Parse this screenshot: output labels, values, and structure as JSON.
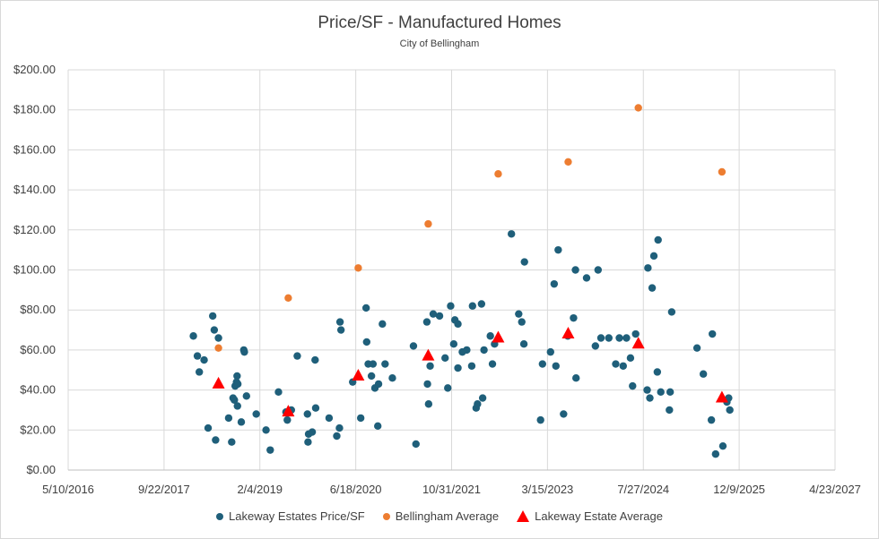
{
  "chart_data": {
    "type": "scatter",
    "title": "Price/SF - Manufactured Homes",
    "subtitle": "City of Bellingham",
    "x_tick_labels": [
      "5/10/2016",
      "9/22/2017",
      "2/4/2019",
      "6/18/2020",
      "10/31/2021",
      "3/15/2023",
      "7/27/2024",
      "12/9/2025",
      "4/23/2027"
    ],
    "y_tick_labels": [
      "$0.00",
      "$20.00",
      "$40.00",
      "$60.00",
      "$80.00",
      "$100.00",
      "$120.00",
      "$140.00",
      "$160.00",
      "$180.00",
      "$200.00"
    ],
    "xlim": [
      "5/10/2016",
      "4/23/2027"
    ],
    "ylim": [
      0,
      200
    ],
    "grid": true,
    "legend_position": "bottom",
    "series": [
      {
        "name": "Lakeway Estates Price/SF",
        "color": "#1f5f7a",
        "marker": "circle",
        "points": [
          [
            "2/22/2018",
            67
          ],
          [
            "3/15/2018",
            57
          ],
          [
            "3/25/2018",
            49
          ],
          [
            "4/19/2018",
            55
          ],
          [
            "5/10/2018",
            21
          ],
          [
            "6/3/2018",
            77
          ],
          [
            "6/11/2018",
            70
          ],
          [
            "6/18/2018",
            15
          ],
          [
            "7/3/2018",
            66
          ],
          [
            "8/25/2018",
            26
          ],
          [
            "9/10/2018",
            14
          ],
          [
            "9/17/2018",
            36
          ],
          [
            "9/24/2018",
            35
          ],
          [
            "9/28/2018",
            42
          ],
          [
            "10/5/2018",
            44
          ],
          [
            "10/8/2018",
            47
          ],
          [
            "10/10/2018",
            32
          ],
          [
            "10/12/2018",
            43
          ],
          [
            "10/30/2018",
            24
          ],
          [
            "11/12/2018",
            60
          ],
          [
            "11/15/2018",
            59
          ],
          [
            "11/26/2018",
            37
          ],
          [
            "1/16/2019",
            28
          ],
          [
            "3/8/2019",
            20
          ],
          [
            "3/30/2019",
            10
          ],
          [
            "5/12/2019",
            39
          ],
          [
            "6/20/2019",
            29
          ],
          [
            "6/27/2019",
            25
          ],
          [
            "7/18/2019",
            30
          ],
          [
            "8/18/2019",
            57
          ],
          [
            "10/10/2019",
            28
          ],
          [
            "10/13/2019",
            14
          ],
          [
            "10/16/2019",
            18
          ],
          [
            "11/4/2019",
            19
          ],
          [
            "11/19/2019",
            55
          ],
          [
            "11/22/2019",
            31
          ],
          [
            "1/31/2020",
            26
          ],
          [
            "3/11/2020",
            17
          ],
          [
            "3/25/2020",
            21
          ],
          [
            "3/28/2020",
            74
          ],
          [
            "4/2/2020",
            70
          ],
          [
            "6/2/2020",
            44
          ],
          [
            "7/14/2020",
            26
          ],
          [
            "8/11/2020",
            81
          ],
          [
            "8/14/2020",
            64
          ],
          [
            "8/22/2020",
            53
          ],
          [
            "9/8/2020",
            47
          ],
          [
            "9/16/2020",
            53
          ],
          [
            "9/26/2020",
            41
          ],
          [
            "10/11/2020",
            22
          ],
          [
            "10/15/2020",
            43
          ],
          [
            "11/4/2020",
            73
          ],
          [
            "11/18/2020",
            53
          ],
          [
            "12/26/2020",
            46
          ],
          [
            "4/15/2021",
            62
          ],
          [
            "4/28/2021",
            13
          ],
          [
            "6/24/2021",
            74
          ],
          [
            "6/27/2021",
            43
          ],
          [
            "7/3/2021",
            33
          ],
          [
            "7/11/2021",
            52
          ],
          [
            "7/27/2021",
            78
          ],
          [
            "8/29/2021",
            77
          ],
          [
            "9/27/2021",
            56
          ],
          [
            "10/11/2021",
            41
          ],
          [
            "10/26/2021",
            82
          ],
          [
            "11/11/2021",
            63
          ],
          [
            "11/17/2021",
            75
          ],
          [
            "12/3/2021",
            73
          ],
          [
            "12/3/2021",
            51
          ],
          [
            "12/26/2021",
            59
          ],
          [
            "1/18/2022",
            60
          ],
          [
            "2/13/2022",
            52
          ],
          [
            "2/17/2022",
            82
          ],
          [
            "3/8/2022",
            31
          ],
          [
            "3/15/2022",
            33
          ],
          [
            "4/5/2022",
            83
          ],
          [
            "4/11/2022",
            36
          ],
          [
            "4/18/2022",
            60
          ],
          [
            "5/21/2022",
            67
          ],
          [
            "6/1/2022",
            53
          ],
          [
            "6/12/2022",
            63
          ],
          [
            "9/8/2022",
            118
          ],
          [
            "10/16/2022",
            78
          ],
          [
            "11/1/2022",
            74
          ],
          [
            "11/12/2022",
            63
          ],
          [
            "11/15/2022",
            104
          ],
          [
            "2/7/2023",
            25
          ],
          [
            "2/17/2023",
            53
          ],
          [
            "3/31/2023",
            59
          ],
          [
            "4/19/2023",
            93
          ],
          [
            "4/28/2023",
            52
          ],
          [
            "5/10/2023",
            110
          ],
          [
            "6/7/2023",
            28
          ],
          [
            "6/29/2023",
            67
          ],
          [
            "7/29/2023",
            76
          ],
          [
            "8/8/2023",
            100
          ],
          [
            "8/11/2023",
            46
          ],
          [
            "10/5/2023",
            96
          ],
          [
            "11/20/2023",
            62
          ],
          [
            "12/4/2023",
            100
          ],
          [
            "12/19/2023",
            66
          ],
          [
            "1/29/2024",
            66
          ],
          [
            "3/5/2024",
            53
          ],
          [
            "3/24/2024",
            66
          ],
          [
            "4/13/2024",
            52
          ],
          [
            "4/30/2024",
            66
          ],
          [
            "5/21/2024",
            56
          ],
          [
            "6/1/2024",
            42
          ],
          [
            "6/17/2024",
            68
          ],
          [
            "8/16/2024",
            40
          ],
          [
            "8/20/2024",
            101
          ],
          [
            "8/30/2024",
            36
          ],
          [
            "9/11/2024",
            91
          ],
          [
            "9/20/2024",
            107
          ],
          [
            "10/8/2024",
            49
          ],
          [
            "10/12/2024",
            115
          ],
          [
            "10/26/2024",
            39
          ],
          [
            "12/10/2024",
            30
          ],
          [
            "12/14/2024",
            39
          ],
          [
            "12/22/2024",
            79
          ],
          [
            "5/3/2025",
            61
          ],
          [
            "6/5/2025",
            48
          ],
          [
            "7/17/2025",
            25
          ],
          [
            "7/22/2025",
            68
          ],
          [
            "8/8/2025",
            8
          ],
          [
            "9/15/2025",
            12
          ],
          [
            "10/6/2025",
            34
          ],
          [
            "10/15/2025",
            36
          ],
          [
            "10/21/2025",
            30
          ]
        ]
      },
      {
        "name": "Bellingham Average",
        "color": "#ed7d31",
        "marker": "circle",
        "points": [
          [
            "7/3/2018",
            61
          ],
          [
            "7/2/2019",
            86
          ],
          [
            "7/1/2020",
            101
          ],
          [
            "7/1/2021",
            123
          ],
          [
            "7/1/2022",
            148
          ],
          [
            "7/1/2023",
            154
          ],
          [
            "7/1/2024",
            181
          ],
          [
            "9/10/2025",
            149
          ]
        ]
      },
      {
        "name": "Lakeway Estate Average",
        "color": "#ff0000",
        "marker": "triangle",
        "points": [
          [
            "7/3/2018",
            43
          ],
          [
            "7/2/2019",
            29
          ],
          [
            "7/1/2020",
            47
          ],
          [
            "7/1/2021",
            57
          ],
          [
            "7/1/2022",
            66
          ],
          [
            "7/1/2023",
            68
          ],
          [
            "7/1/2024",
            63
          ],
          [
            "9/10/2025",
            36
          ]
        ]
      }
    ]
  }
}
